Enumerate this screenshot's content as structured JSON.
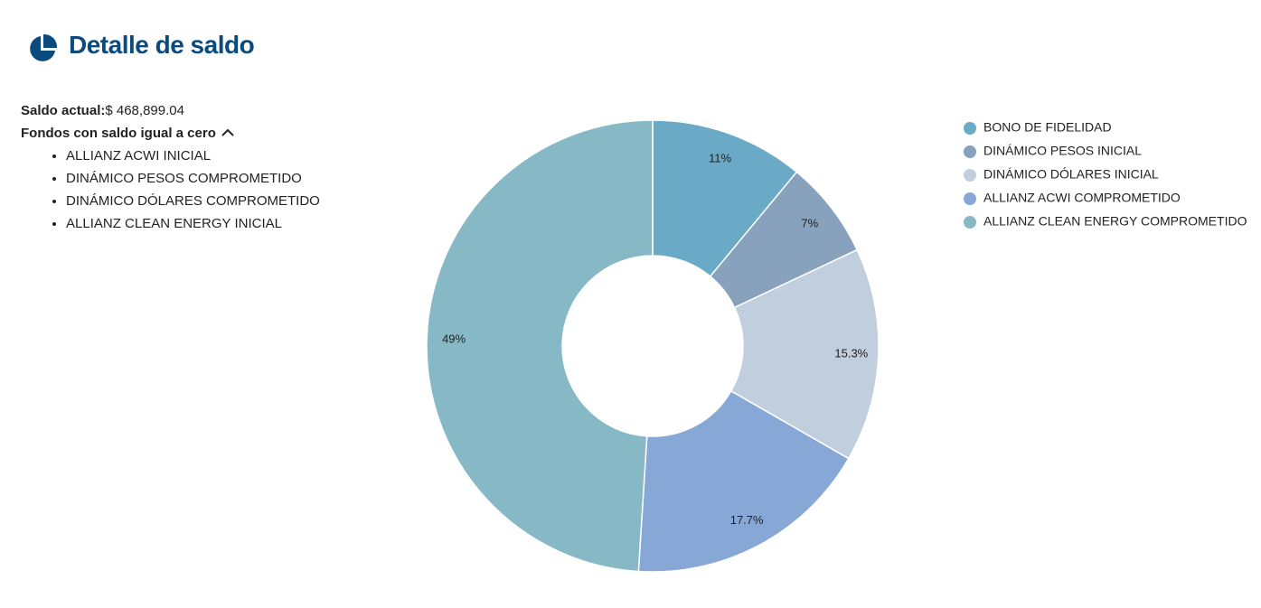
{
  "header": {
    "title": "Detalle de saldo"
  },
  "summary": {
    "balance_label": "Saldo actual:",
    "balance": "$ 468,899.04",
    "zero_funds_label": "Fondos con saldo igual a cero",
    "zero_funds": [
      "ALLIANZ ACWI INICIAL",
      "DINÁMICO PESOS COMPROMETIDO",
      "DINÁMICO DÓLARES COMPROMETIDO",
      "ALLIANZ CLEAN ENERGY INICIAL"
    ]
  },
  "chart_data": {
    "type": "donut",
    "categories": [
      "BONO DE FIDELIDAD",
      "DINÁMICO PESOS INICIAL",
      "DINÁMICO DÓLARES INICIAL",
      "ALLIANZ ACWI COMPROMETIDO",
      "ALLIANZ CLEAN ENERGY COMPROMETIDO"
    ],
    "values": [
      11,
      7,
      15.3,
      17.7,
      49
    ],
    "value_labels": [
      "11%",
      "7%",
      "15.3%",
      "17.7%",
      "49%"
    ],
    "colors": [
      "#6aaac6",
      "#88a2bd",
      "#c0cedd",
      "#87a8d6",
      "#86b9c5"
    ],
    "legend": "right"
  }
}
